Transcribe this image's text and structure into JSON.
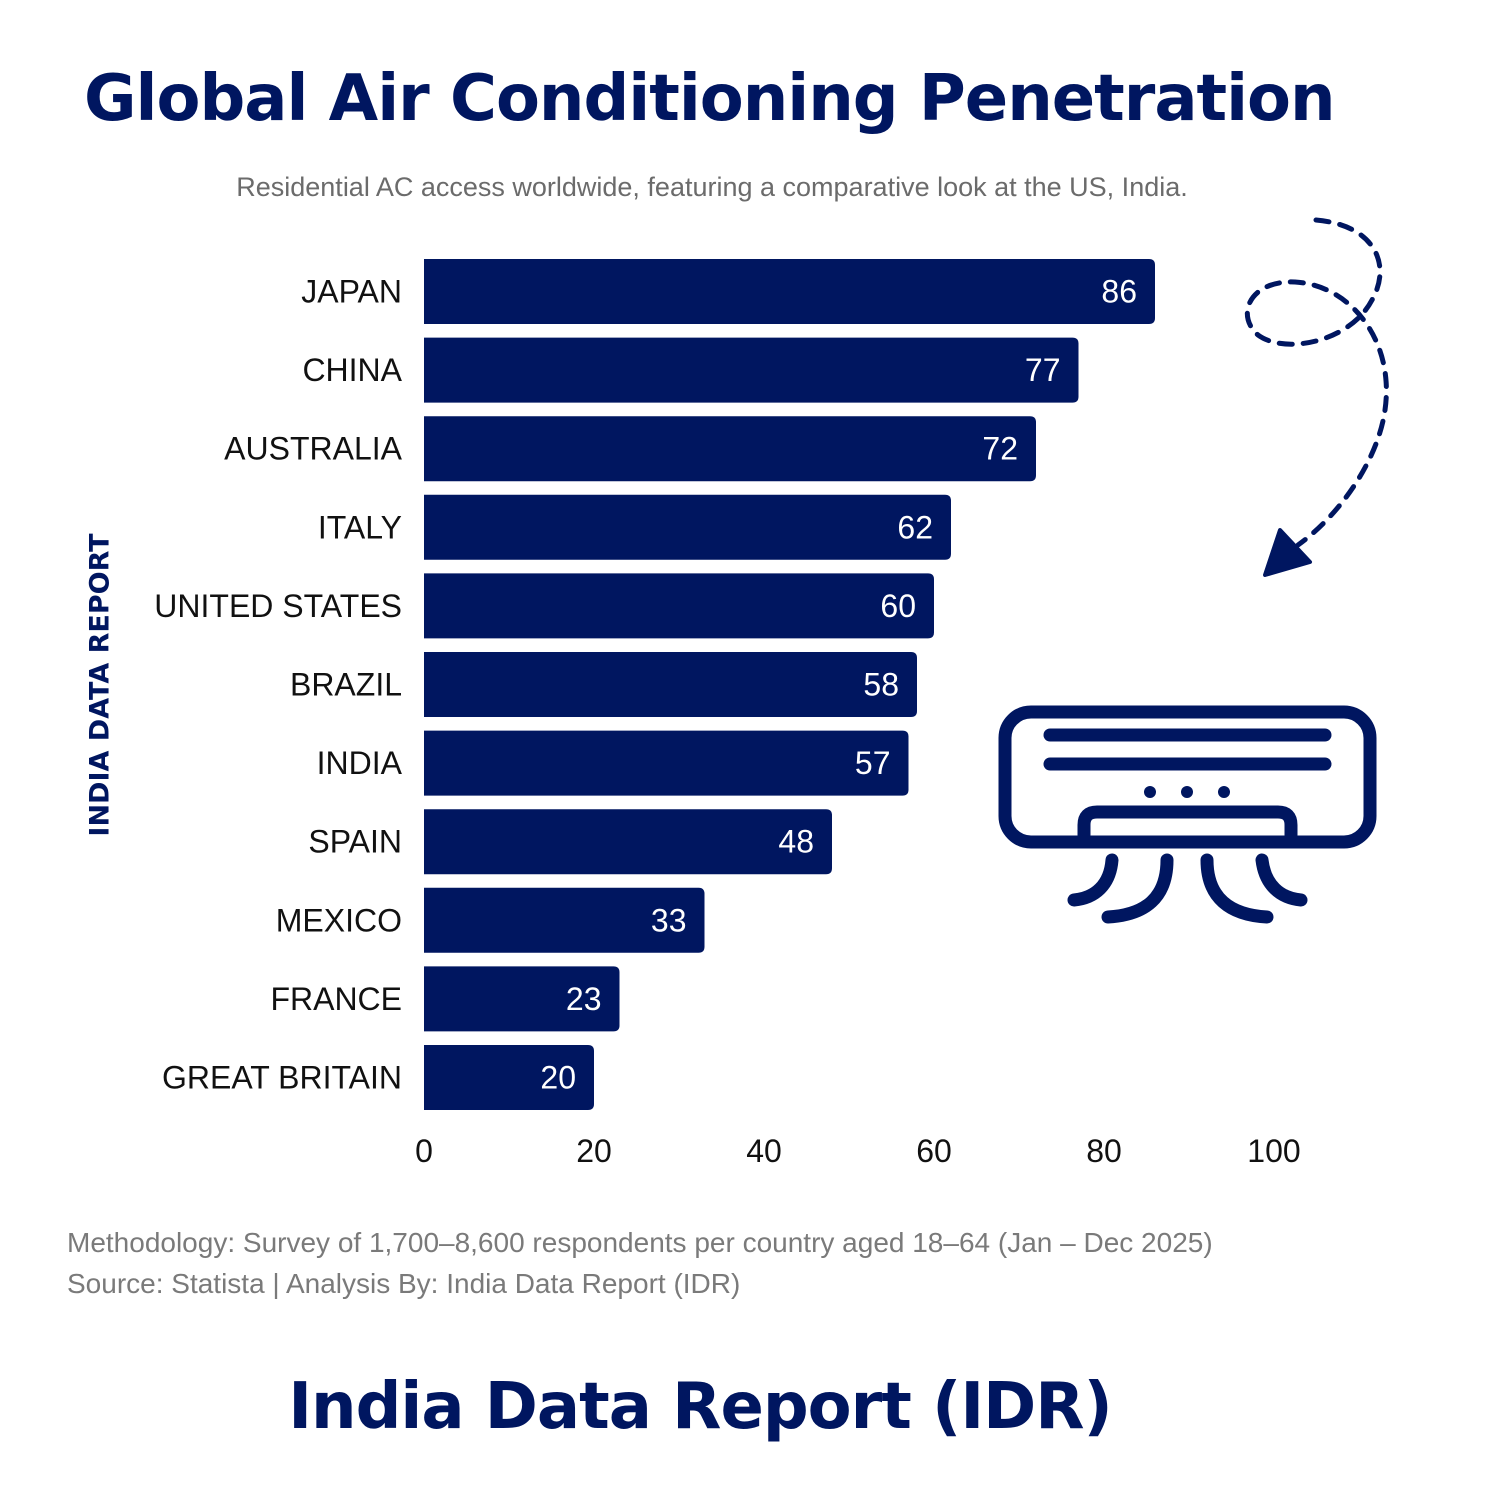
{
  "header": {
    "title": "Global Air Conditioning Penetration",
    "subtitle": "Residential AC access worldwide, featuring a comparative look at the US, India."
  },
  "side_label": "INDIA DATA REPORT",
  "chart_data": {
    "type": "bar",
    "orientation": "horizontal",
    "categories": [
      "JAPAN",
      "CHINA",
      "AUSTRALIA",
      "ITALY",
      "UNITED STATES",
      "BRAZIL",
      "INDIA",
      "SPAIN",
      "MEXICO",
      "FRANCE",
      "GREAT BRITAIN"
    ],
    "values": [
      86,
      77,
      72,
      62,
      60,
      58,
      57,
      48,
      33,
      23,
      20
    ],
    "xlim": [
      0,
      100
    ],
    "xticks": [
      0,
      20,
      40,
      60,
      80,
      100
    ],
    "data_labels": true,
    "grid": false,
    "legend": "none",
    "bar_color": "#001660"
  },
  "footer": {
    "methodology": "Methodology: Survey of 1,700–8,600 respondents per country aged 18–64 (Jan – Dec 2025)",
    "source": "Source: Statista | Analysis By: India Data Report (IDR)",
    "brand": "India Data Report (IDR)"
  },
  "icons": {
    "arrow": "dashed-curved-arrow-icon",
    "ac": "air-conditioner-icon"
  },
  "colors": {
    "primary": "#001660",
    "muted": "#6b6b6b"
  }
}
